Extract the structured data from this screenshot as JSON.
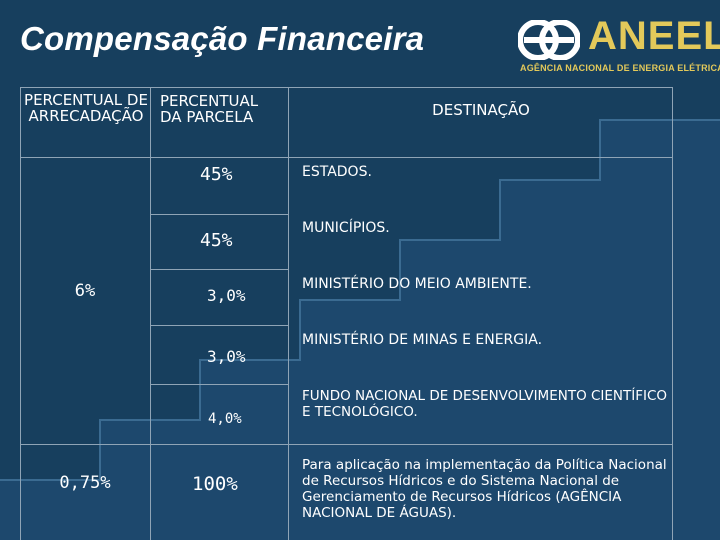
{
  "header": {
    "title": "Compensação Financeira",
    "logo": {
      "name": "ANEEL",
      "subtitle": "AGÊNCIA NACIONAL DE ENERGIA ELÉTRICA",
      "icon": "aneel-logo-mark",
      "color": "#e3c95a"
    }
  },
  "table": {
    "headers": {
      "arrecadacao": "PERCENTUAL DE ARRECADAÇÃO",
      "parcela": "PERCENTUAL DA PARCELA",
      "destinacao": "DESTINAÇÃO"
    },
    "arrecadacao_values": [
      "6%",
      "0,75%"
    ],
    "parcelas": [
      {
        "percent": "45%",
        "destination": "ESTADOS."
      },
      {
        "percent": "45%",
        "destination": "MUNICÍPIOS."
      },
      {
        "percent": "3,0%",
        "destination": "MINISTÉRIO DO MEIO AMBIENTE."
      },
      {
        "percent": "3,0%",
        "destination": "MINISTÉRIO DE MINAS E ENERGIA."
      },
      {
        "percent": "4,0%",
        "destination": "FUNDO NACIONAL DE DESENVOLVIMENTO CIENTÍFICO E TECNOLÓGICO."
      },
      {
        "percent": "100%",
        "destination": "Para aplicação na implementação da Política Nacional de Recursos Hídricos e do Sistema Nacional de Gerenciamento de Recursos Hídricos (AGÊNCIA NACIONAL DE ÁGUAS)."
      }
    ]
  },
  "colors": {
    "background": "#173f5e",
    "stairs": "#2d5a7c",
    "text": "#ffffff"
  }
}
